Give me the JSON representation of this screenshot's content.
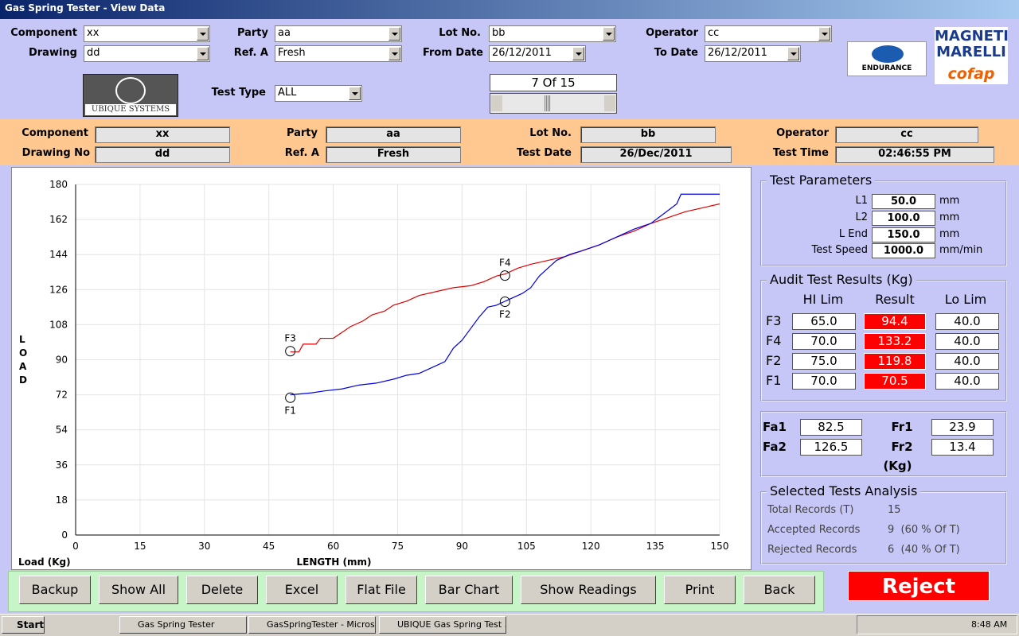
{
  "window": {
    "title": "Gas Spring Tester - View Data"
  },
  "filters": [
    {
      "label": "Component",
      "value": "xx"
    },
    {
      "label": "Drawing",
      "value": "dd"
    },
    {
      "label": "Party",
      "value": "aa"
    },
    {
      "label": "Ref. A",
      "value": "Fresh"
    },
    {
      "label": "Lot No.",
      "value": "bb"
    },
    {
      "label": "From Date",
      "value": "26/12/2011"
    },
    {
      "label": "Operator",
      "value": "cc"
    },
    {
      "label": "To Date",
      "value": "26/12/2011"
    },
    {
      "label": "Test Type",
      "value": "ALL"
    }
  ],
  "logos": {
    "ubique": "UBIQUE SYSTEMS",
    "endurance": "ENDURANCE",
    "magneti": "MAGNETI",
    "marelli": "MARELLI",
    "cofap": "cofap"
  },
  "record_nav": "7 Of 15",
  "info": [
    {
      "label": "Component",
      "value": "xx"
    },
    {
      "label": "Drawing No",
      "value": "dd"
    },
    {
      "label": "Party",
      "value": "aa"
    },
    {
      "label": "Ref. A",
      "value": "Fresh"
    },
    {
      "label": "Lot No.",
      "value": "bb"
    },
    {
      "label": "Test Date",
      "value": "26/Dec/2011"
    },
    {
      "label": "Operator",
      "value": "cc"
    },
    {
      "label": "Test Time",
      "value": "02:46:55 PM"
    }
  ],
  "chart_data": {
    "type": "line",
    "x_label": "LENGTH (mm)",
    "y_label": "LOAD",
    "corner_label": "Load (Kg)",
    "xlim": [
      0,
      150
    ],
    "xticks": [
      0,
      15,
      30,
      45,
      60,
      75,
      90,
      105,
      120,
      135,
      150
    ],
    "ylim": [
      0,
      180
    ],
    "yticks": [
      0,
      18,
      36,
      54,
      72,
      90,
      108,
      126,
      144,
      162,
      180
    ],
    "grid": true,
    "series": [
      {
        "name": "Red",
        "color": "#e00000",
        "x": [
          50,
          52,
          53,
          56,
          57,
          60,
          62,
          64,
          67,
          69,
          72,
          74,
          77,
          80,
          84,
          88,
          92,
          95,
          98,
          100,
          103,
          106,
          110,
          114,
          118,
          122,
          126,
          130,
          134,
          138,
          142,
          146,
          150
        ],
        "values": [
          94,
          94,
          98,
          98,
          101,
          101,
          104,
          107,
          110,
          113,
          115,
          118,
          120,
          123,
          125,
          127,
          128,
          130,
          133,
          134,
          137,
          139,
          141,
          143,
          146,
          149,
          153,
          156,
          160,
          163,
          166,
          168,
          170
        ]
      },
      {
        "name": "Blue",
        "color": "#0000e0",
        "x": [
          50,
          55,
          58,
          62,
          66,
          70,
          74,
          77,
          80,
          83,
          86,
          88,
          90,
          92,
          94,
          96,
          98,
          100,
          102,
          104,
          106,
          108,
          110,
          112,
          115,
          118,
          122,
          126,
          130,
          134,
          137,
          140,
          141,
          150
        ],
        "values": [
          72,
          73,
          74,
          75,
          77,
          78,
          80,
          82,
          83,
          86,
          89,
          96,
          100,
          106,
          112,
          117,
          118,
          120,
          122,
          124,
          127,
          133,
          137,
          141,
          144,
          146,
          149,
          153,
          157,
          160,
          165,
          170,
          175,
          175
        ]
      }
    ],
    "markers": [
      {
        "label": "F3",
        "x": 50,
        "y": 94.4
      },
      {
        "label": "F4",
        "x": 100,
        "y": 133.2
      },
      {
        "label": "F2",
        "x": 100,
        "y": 119.8
      },
      {
        "label": "F1",
        "x": 50,
        "y": 70.5
      }
    ]
  },
  "test_parameters": {
    "title": "Test Parameters",
    "rows": [
      {
        "label": "L1",
        "value": "50.0",
        "unit": "mm"
      },
      {
        "label": "L2",
        "value": "100.0",
        "unit": "mm"
      },
      {
        "label": "L End",
        "value": "150.0",
        "unit": "mm"
      },
      {
        "label": "Test Speed",
        "value": "1000.0",
        "unit": "mm/min"
      }
    ]
  },
  "audit": {
    "title": "Audit Test Results (Kg)",
    "columns": [
      "HI Lim",
      "Result",
      "Lo Lim"
    ],
    "rows": [
      {
        "label": "F3",
        "hi": "65.0",
        "result": "94.4",
        "lo": "40.0"
      },
      {
        "label": "F4",
        "hi": "70.0",
        "result": "133.2",
        "lo": "40.0"
      },
      {
        "label": "F2",
        "hi": "75.0",
        "result": "119.8",
        "lo": "40.0"
      },
      {
        "label": "F1",
        "hi": "70.0",
        "result": "70.5",
        "lo": "40.0"
      }
    ]
  },
  "forces": {
    "rows": [
      {
        "label": "Fa1",
        "value": "82.5"
      },
      {
        "label": "Fa2",
        "value": "126.5"
      },
      {
        "label": "Fr1",
        "value": "23.9"
      },
      {
        "label": "Fr2",
        "value": "13.4"
      }
    ],
    "unit": "(Kg)"
  },
  "analysis": {
    "title": "Selected Tests Analysis",
    "rows": [
      {
        "label": "Total Records (T)",
        "value": "15"
      },
      {
        "label": "Accepted Records",
        "value": "9  (60 % Of T)"
      },
      {
        "label": "Rejected Records",
        "value": "6  (40 % Of T)"
      }
    ]
  },
  "buttons": [
    "Backup",
    "Show All",
    "Delete",
    "Excel",
    "Flat File",
    "Bar Chart",
    "Show Readings",
    "Print",
    "Back"
  ],
  "status_button": "Reject",
  "taskbar": {
    "start": "Start",
    "tasks": [
      "Gas Spring Tester",
      "GasSpringTester - Micros...",
      "UBIQUE Gas Spring Test ..."
    ],
    "clock": "8:48 AM"
  }
}
